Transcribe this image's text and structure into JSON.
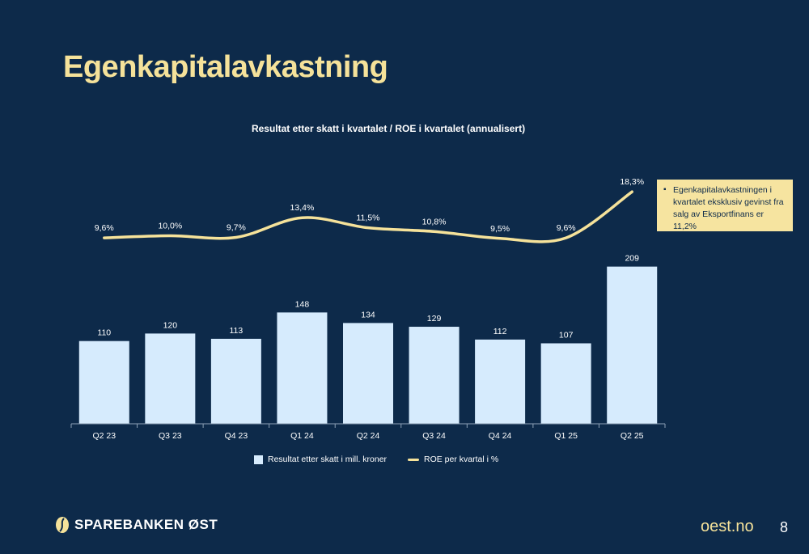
{
  "page": {
    "title": "Egenkapitalavkastning",
    "site": "oest.no",
    "page_number": "8",
    "logo_text": "SPAREBANKEN ØST"
  },
  "note": {
    "text": "Egenkapitalavkastningen i kvartalet eksklusiv gevinst fra salg av Eksportfinans er 11,2%"
  },
  "colors": {
    "background": "#0d2a4a",
    "bar": "#d6ebfd",
    "line": "#f5e29a",
    "text": "#ffffff",
    "accent": "#f5e29a"
  },
  "chart_data": {
    "type": "bar",
    "title": "Resultat etter skatt i kvartalet / ROE i kvartalet (annualisert)",
    "categories": [
      "Q2 23",
      "Q3 23",
      "Q4 23",
      "Q1 24",
      "Q2 24",
      "Q3 24",
      "Q4 24",
      "Q1 25",
      "Q2 25"
    ],
    "series": [
      {
        "name": "Resultat etter skatt i mill. kroner",
        "type": "bar",
        "values": [
          110,
          120,
          113,
          148,
          134,
          129,
          112,
          107,
          209
        ],
        "labels": [
          "110",
          "120",
          "113",
          "148",
          "134",
          "129",
          "112",
          "107",
          "209"
        ]
      },
      {
        "name": "ROE per kvartal i %",
        "type": "line",
        "values": [
          9.6,
          10.0,
          9.7,
          13.4,
          11.5,
          10.8,
          9.5,
          9.6,
          18.3
        ],
        "labels": [
          "9,6%",
          "10,0%",
          "9,7%",
          "13,4%",
          "11,5%",
          "10,8%",
          "9,5%",
          "9,6%",
          "18,3%"
        ]
      }
    ],
    "legend_position": "bottom",
    "grid": false
  }
}
